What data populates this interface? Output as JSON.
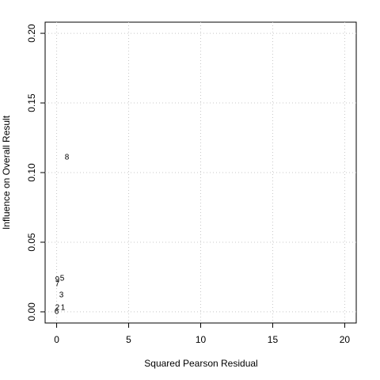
{
  "chart_data": {
    "type": "scatter",
    "x_label": "Squared Pearson Residual",
    "y_label": "Influence on Overall Result",
    "x": [
      0.71,
      0.05,
      0.38,
      0.05,
      0.33,
      0.05,
      0.44,
      0.0
    ],
    "values": [
      0.111,
      0.023,
      0.024,
      0.02,
      0.012,
      0.003,
      0.003,
      0.0
    ],
    "labels": [
      "8",
      "9",
      "5",
      "7",
      "3",
      "2",
      "1",
      "6"
    ],
    "color": "#000000",
    "xlim": [
      -0.8,
      20.8
    ],
    "ylim": [
      -0.008,
      0.208
    ],
    "xticks": [
      0,
      5,
      10,
      15,
      20
    ],
    "yticks": [
      {
        "value": 0,
        "label": "0.00"
      },
      {
        "value": 0.05,
        "label": "0.05"
      },
      {
        "value": 0.1,
        "label": "0.10"
      },
      {
        "value": 0.15,
        "label": "0.15"
      },
      {
        "value": 0.2,
        "label": "0.20"
      }
    ],
    "grid": true
  }
}
